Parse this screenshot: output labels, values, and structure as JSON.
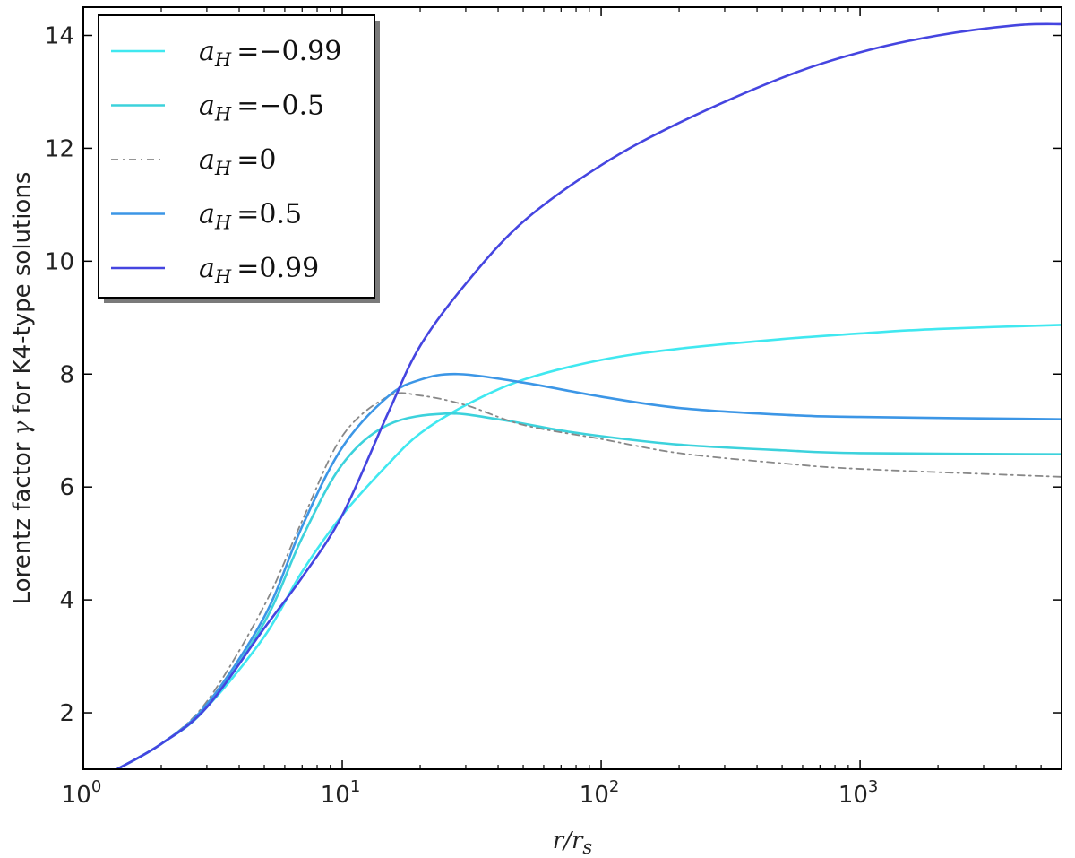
{
  "chart_data": {
    "type": "line",
    "title": "",
    "xlabel_main": "r/r",
    "xlabel_sub": "s",
    "ylabel_prefix": "Lorentz factor ",
    "ylabel_symbol": "γ",
    "ylabel_suffix": " for K4-type solutions",
    "xscale": "log",
    "xlim": [
      1,
      6000
    ],
    "ylim": [
      1,
      14.5
    ],
    "grid": false,
    "legend_position": "top-left",
    "x_ticks": [
      {
        "value": 1,
        "base": "10",
        "exp": "0"
      },
      {
        "value": 10,
        "base": "10",
        "exp": "1"
      },
      {
        "value": 100,
        "base": "10",
        "exp": "2"
      },
      {
        "value": 1000,
        "base": "10",
        "exp": "3"
      }
    ],
    "y_ticks": [
      2,
      4,
      6,
      8,
      10,
      12,
      14
    ],
    "series": [
      {
        "name": "a_H = -0.99",
        "label_var": "a",
        "label_sub": "H",
        "label_val": "=−0.99",
        "color": "#40E8F0",
        "dash": "solid",
        "points": [
          [
            1.35,
            1.0
          ],
          [
            2,
            1.45
          ],
          [
            3,
            2.1
          ],
          [
            5,
            3.35
          ],
          [
            7,
            4.5
          ],
          [
            10,
            5.5
          ],
          [
            15,
            6.4
          ],
          [
            20,
            6.95
          ],
          [
            30,
            7.45
          ],
          [
            50,
            7.9
          ],
          [
            100,
            8.25
          ],
          [
            200,
            8.45
          ],
          [
            500,
            8.62
          ],
          [
            1000,
            8.72
          ],
          [
            2000,
            8.8
          ],
          [
            6000,
            8.87
          ]
        ]
      },
      {
        "name": "a_H = -0.5",
        "label_var": "a",
        "label_sub": "H",
        "label_val": "=−0.5",
        "color": "#3CD2DC",
        "dash": "solid",
        "points": [
          [
            1.35,
            1.0
          ],
          [
            2,
            1.45
          ],
          [
            3,
            2.1
          ],
          [
            5,
            3.6
          ],
          [
            7,
            5.1
          ],
          [
            10,
            6.4
          ],
          [
            15,
            7.1
          ],
          [
            25,
            7.3
          ],
          [
            40,
            7.2
          ],
          [
            70,
            7.0
          ],
          [
            100,
            6.9
          ],
          [
            200,
            6.75
          ],
          [
            500,
            6.65
          ],
          [
            1000,
            6.6
          ],
          [
            6000,
            6.58
          ]
        ]
      },
      {
        "name": "a_H = 0",
        "label_var": "a",
        "label_sub": "H",
        "label_val": "=0",
        "color": "#888888",
        "dash": "dashdot",
        "points": [
          [
            1.35,
            1.0
          ],
          [
            2,
            1.45
          ],
          [
            3,
            2.2
          ],
          [
            5,
            3.9
          ],
          [
            7,
            5.4
          ],
          [
            10,
            6.9
          ],
          [
            15,
            7.6
          ],
          [
            20,
            7.62
          ],
          [
            30,
            7.45
          ],
          [
            50,
            7.1
          ],
          [
            100,
            6.85
          ],
          [
            200,
            6.6
          ],
          [
            500,
            6.42
          ],
          [
            1000,
            6.32
          ],
          [
            6000,
            6.18
          ]
        ]
      },
      {
        "name": "a_H = 0.5",
        "label_var": "a",
        "label_sub": "H",
        "label_val": "=0.5",
        "color": "#3C96E6",
        "dash": "solid",
        "points": [
          [
            1.35,
            1.0
          ],
          [
            2,
            1.45
          ],
          [
            3,
            2.15
          ],
          [
            5,
            3.7
          ],
          [
            7,
            5.3
          ],
          [
            10,
            6.7
          ],
          [
            15,
            7.6
          ],
          [
            20,
            7.9
          ],
          [
            28,
            8.0
          ],
          [
            50,
            7.85
          ],
          [
            100,
            7.6
          ],
          [
            200,
            7.4
          ],
          [
            500,
            7.28
          ],
          [
            1000,
            7.24
          ],
          [
            6000,
            7.2
          ]
        ]
      },
      {
        "name": "a_H = 0.99",
        "label_var": "a",
        "label_sub": "H",
        "label_val": "=0.99",
        "color": "#4545E0",
        "dash": "solid",
        "points": [
          [
            1.35,
            1.0
          ],
          [
            2,
            1.45
          ],
          [
            3,
            2.1
          ],
          [
            5,
            3.5
          ],
          [
            7,
            4.4
          ],
          [
            10,
            5.5
          ],
          [
            15,
            7.3
          ],
          [
            20,
            8.5
          ],
          [
            30,
            9.6
          ],
          [
            50,
            10.7
          ],
          [
            100,
            11.7
          ],
          [
            200,
            12.45
          ],
          [
            500,
            13.25
          ],
          [
            1000,
            13.7
          ],
          [
            2000,
            14.0
          ],
          [
            4000,
            14.18
          ],
          [
            6000,
            14.2
          ]
        ]
      }
    ]
  }
}
